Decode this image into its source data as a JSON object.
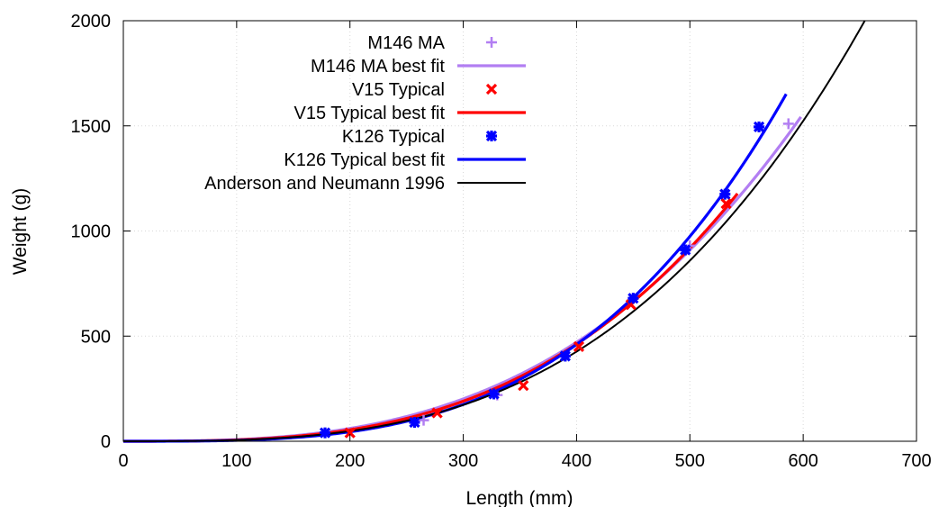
{
  "chart_data": {
    "type": "scatter",
    "title": "",
    "xlabel": "Length (mm)",
    "ylabel": "Weight (g)",
    "xlim": [
      0,
      700
    ],
    "ylim": [
      0,
      2000
    ],
    "xticks": [
      0,
      100,
      200,
      300,
      400,
      500,
      600,
      700
    ],
    "yticks": [
      0,
      500,
      1000,
      1500,
      2000
    ],
    "grid": true,
    "legend_position": "top-left",
    "series": [
      {
        "name": "M146 MA",
        "kind": "points",
        "marker": "plus",
        "color": "#b27ef2",
        "x": [
          265,
          330,
          390,
          450,
          500,
          587
        ],
        "y": [
          100,
          220,
          405,
          680,
          930,
          1510
        ]
      },
      {
        "name": "M146 MA best fit",
        "kind": "line",
        "color": "#b27ef2",
        "a": 9.93e-06,
        "b": 2.95,
        "xrange": [
          0,
          598
        ]
      },
      {
        "name": "V15 Typical",
        "kind": "points",
        "marker": "x",
        "color": "#ff0000",
        "x": [
          200,
          277,
          353,
          402,
          448,
          532
        ],
        "y": [
          40,
          135,
          265,
          450,
          650,
          1130
        ]
      },
      {
        "name": "V15 Typical best fit",
        "kind": "line",
        "color": "#ff0000",
        "a": 4.47e-06,
        "b": 3.08,
        "xrange": [
          0,
          542
        ]
      },
      {
        "name": "K126 Typical",
        "kind": "points",
        "marker": "star",
        "color": "#0000ff",
        "x": [
          178,
          257,
          327,
          390,
          450,
          496,
          531,
          561
        ],
        "y": [
          40,
          90,
          225,
          405,
          680,
          910,
          1175,
          1495
        ]
      },
      {
        "name": "K126 Typical best fit",
        "kind": "line",
        "color": "#0000ff",
        "a": 8.32e-07,
        "b": 3.36,
        "xrange": [
          0,
          585
        ]
      },
      {
        "name": "Anderson and Neumann 1996",
        "kind": "line",
        "color": "#000000",
        "a": 2.88e-06,
        "b": 3.14,
        "xrange": [
          0,
          655
        ]
      }
    ]
  }
}
